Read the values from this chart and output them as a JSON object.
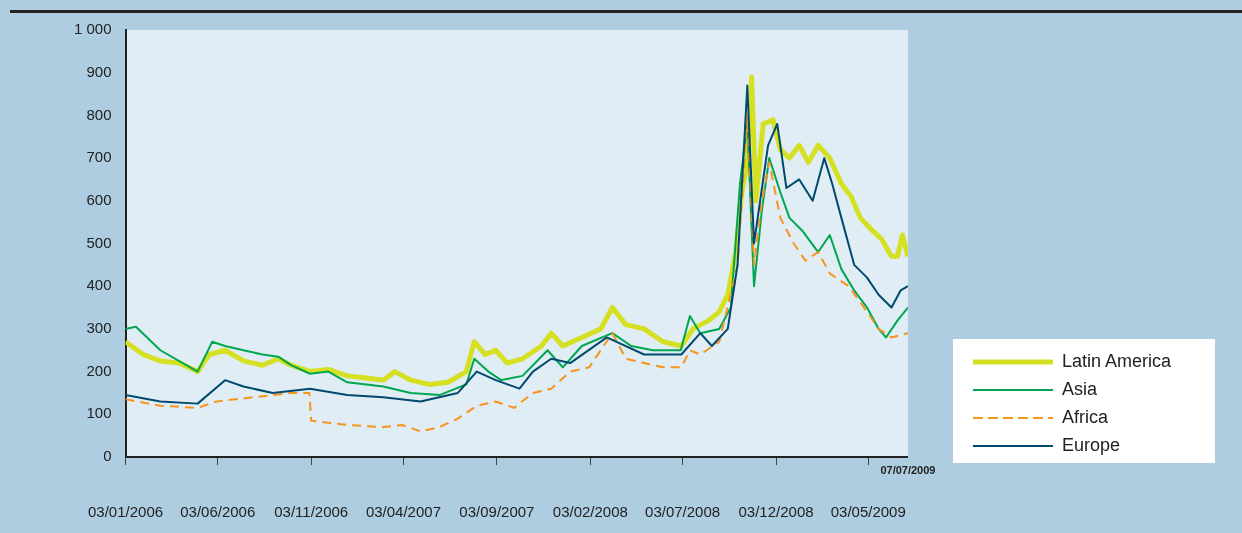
{
  "chart_data": {
    "type": "line",
    "xlim": [
      "2006-01-03",
      "2009-07-07"
    ],
    "xticks": [
      {
        "value": "2006-01-03",
        "label": "03/01/2006"
      },
      {
        "value": "2006-06-03",
        "label": "03/06/2006"
      },
      {
        "value": "2006-11-03",
        "label": "03/11/2006"
      },
      {
        "value": "2007-04-03",
        "label": "03/04/2007"
      },
      {
        "value": "2007-09-03",
        "label": "03/09/2007"
      },
      {
        "value": "2008-02-03",
        "label": "03/02/2008"
      },
      {
        "value": "2008-07-03",
        "label": "03/07/2008"
      },
      {
        "value": "2008-12-03",
        "label": "03/12/2008"
      },
      {
        "value": "2009-05-03",
        "label": "03/05/2009"
      }
    ],
    "annotations": [
      "07/07/2009"
    ],
    "ylim": [
      0,
      1000
    ],
    "yticks": [
      0,
      100,
      200,
      300,
      400,
      500,
      600,
      700,
      800,
      900,
      {
        "value": 1000,
        "label": "1 000"
      }
    ],
    "grid": false,
    "legend": "bottom right",
    "marker": "none",
    "series": [
      {
        "name": "Latin America",
        "color": "#d4e021",
        "line_style": "solid",
        "x": [
          "2006-01-03",
          "2006-02-01",
          "2006-03-01",
          "2006-04-01",
          "2006-05-01",
          "2006-05-20",
          "2006-06-15",
          "2006-07-15",
          "2006-08-15",
          "2006-09-10",
          "2006-10-01",
          "2006-11-01",
          "2006-12-01",
          "2007-01-01",
          "2007-02-01",
          "2007-03-01",
          "2007-03-20",
          "2007-04-15",
          "2007-05-15",
          "2007-06-15",
          "2007-07-15",
          "2007-07-28",
          "2007-08-15",
          "2007-09-01",
          "2007-09-20",
          "2007-10-15",
          "2007-11-15",
          "2007-12-01",
          "2007-12-20",
          "2008-01-20",
          "2008-02-20",
          "2008-03-10",
          "2008-04-01",
          "2008-05-01",
          "2008-06-01",
          "2008-07-01",
          "2008-07-20",
          "2008-08-15",
          "2008-09-01",
          "2008-09-15",
          "2008-09-28",
          "2008-10-08",
          "2008-10-17",
          "2008-10-24",
          "2008-10-31",
          "2008-11-12",
          "2008-11-28",
          "2008-12-10",
          "2008-12-25",
          "2009-01-10",
          "2009-01-25",
          "2009-02-10",
          "2009-03-01",
          "2009-03-20",
          "2009-04-05",
          "2009-04-20",
          "2009-05-10",
          "2009-05-25",
          "2009-06-10",
          "2009-06-20",
          "2009-06-28",
          "2009-07-07"
        ],
        "values": [
          270,
          240,
          225,
          220,
          200,
          240,
          250,
          225,
          215,
          230,
          215,
          200,
          205,
          190,
          185,
          180,
          200,
          180,
          170,
          175,
          200,
          270,
          240,
          250,
          220,
          230,
          260,
          290,
          260,
          280,
          300,
          350,
          310,
          300,
          270,
          260,
          300,
          320,
          340,
          380,
          480,
          620,
          690,
          890,
          600,
          780,
          790,
          720,
          700,
          730,
          690,
          730,
          700,
          640,
          610,
          560,
          530,
          510,
          470,
          470,
          520,
          470
        ]
      },
      {
        "name": "Asia",
        "color": "#00a650",
        "line_style": "solid",
        "x": [
          "2006-01-03",
          "2006-01-20",
          "2006-03-01",
          "2006-05-01",
          "2006-05-25",
          "2006-06-15",
          "2006-07-15",
          "2006-08-15",
          "2006-09-10",
          "2006-10-01",
          "2006-11-01",
          "2006-12-01",
          "2007-01-01",
          "2007-03-01",
          "2007-04-15",
          "2007-06-01",
          "2007-07-15",
          "2007-07-28",
          "2007-08-20",
          "2007-09-10",
          "2007-10-15",
          "2007-11-25",
          "2007-12-20",
          "2008-01-20",
          "2008-03-10",
          "2008-04-10",
          "2008-05-15",
          "2008-06-30",
          "2008-07-15",
          "2008-08-01",
          "2008-09-01",
          "2008-09-20",
          "2008-10-05",
          "2008-10-17",
          "2008-10-28",
          "2008-11-10",
          "2008-11-22",
          "2008-12-10",
          "2008-12-25",
          "2009-01-15",
          "2009-02-10",
          "2009-03-01",
          "2009-03-20",
          "2009-04-10",
          "2009-05-01",
          "2009-05-20",
          "2009-06-01",
          "2009-06-20",
          "2009-07-07"
        ],
        "values": [
          300,
          305,
          250,
          200,
          270,
          260,
          250,
          240,
          235,
          215,
          195,
          200,
          175,
          165,
          150,
          145,
          170,
          230,
          200,
          180,
          190,
          250,
          210,
          260,
          290,
          260,
          250,
          250,
          330,
          290,
          300,
          350,
          640,
          780,
          400,
          580,
          700,
          620,
          560,
          530,
          480,
          520,
          440,
          390,
          350,
          300,
          280,
          320,
          350
        ]
      },
      {
        "name": "Africa",
        "color": "#f7941d",
        "line_style": "dashed",
        "x": [
          "2006-01-03",
          "2006-03-01",
          "2006-05-01",
          "2006-06-01",
          "2006-08-01",
          "2006-10-01",
          "2006-10-31",
          "2006-11-03",
          "2006-12-01",
          "2007-01-01",
          "2007-03-01",
          "2007-04-01",
          "2007-05-01",
          "2007-06-01",
          "2007-07-01",
          "2007-08-01",
          "2007-09-01",
          "2007-10-01",
          "2007-11-01",
          "2007-12-01",
          "2008-01-01",
          "2008-02-01",
          "2008-03-10",
          "2008-04-01",
          "2008-05-01",
          "2008-06-01",
          "2008-07-01",
          "2008-07-15",
          "2008-08-01",
          "2008-09-01",
          "2008-10-01",
          "2008-10-17",
          "2008-10-28",
          "2008-11-10",
          "2008-11-22",
          "2008-12-10",
          "2009-01-01",
          "2009-01-20",
          "2009-02-10",
          "2009-03-01",
          "2009-04-01",
          "2009-05-01",
          "2009-05-20",
          "2009-06-10",
          "2009-07-07"
        ],
        "values": [
          135,
          120,
          115,
          130,
          140,
          150,
          150,
          85,
          80,
          75,
          70,
          75,
          60,
          70,
          90,
          120,
          130,
          115,
          150,
          160,
          200,
          210,
          290,
          230,
          220,
          210,
          210,
          250,
          240,
          270,
          450,
          800,
          450,
          600,
          690,
          560,
          500,
          460,
          480,
          430,
          400,
          340,
          300,
          280,
          290
        ]
      },
      {
        "name": "Europe",
        "color": "#004a6e",
        "line_style": "solid",
        "x": [
          "2006-01-03",
          "2006-03-01",
          "2006-05-01",
          "2006-06-15",
          "2006-07-15",
          "2006-09-01",
          "2006-11-01",
          "2007-01-01",
          "2007-03-01",
          "2007-05-01",
          "2007-07-01",
          "2007-08-01",
          "2007-09-01",
          "2007-10-10",
          "2007-11-01",
          "2007-12-01",
          "2008-01-01",
          "2008-03-01",
          "2008-05-01",
          "2008-07-01",
          "2008-08-01",
          "2008-08-20",
          "2008-09-15",
          "2008-10-01",
          "2008-10-17",
          "2008-10-28",
          "2008-11-05",
          "2008-11-20",
          "2008-12-05",
          "2008-12-20",
          "2009-01-10",
          "2009-02-01",
          "2009-02-20",
          "2009-03-05",
          "2009-03-20",
          "2009-04-10",
          "2009-05-01",
          "2009-05-20",
          "2009-06-10",
          "2009-06-25",
          "2009-07-07"
        ],
        "values": [
          145,
          130,
          125,
          180,
          165,
          150,
          160,
          145,
          140,
          130,
          150,
          200,
          180,
          160,
          200,
          230,
          220,
          280,
          240,
          240,
          290,
          260,
          300,
          450,
          870,
          500,
          580,
          730,
          780,
          630,
          650,
          600,
          700,
          640,
          560,
          450,
          420,
          380,
          350,
          390,
          400
        ]
      }
    ]
  }
}
